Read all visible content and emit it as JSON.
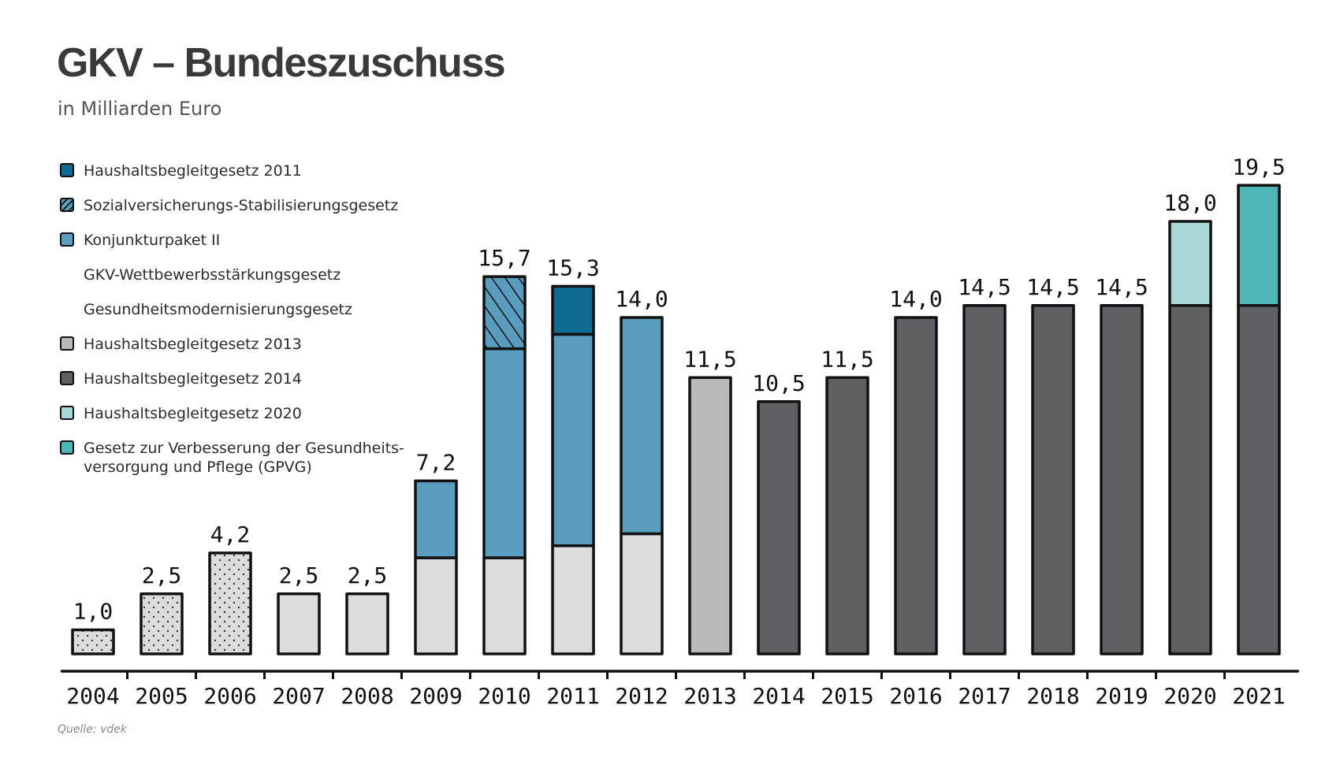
{
  "title": "GKV – Bundeszuschuss",
  "subtitle": "in Milliarden Euro",
  "source": "Quelle: vdek",
  "legend": [
    {
      "label": "Haushaltsbegleitgesetz 2011",
      "color": "#0f6b93",
      "pattern": "solid"
    },
    {
      "label": "Sozialversicherungs-Stabilisierungsgesetz",
      "color": "#5a9cbd",
      "pattern": "hatch"
    },
    {
      "label": "Konjunkturpaket II",
      "color": "#5a9cbd",
      "pattern": "solid"
    },
    {
      "label": "GKV-Wettbewerbsstärkungsgesetz",
      "color": "",
      "pattern": "none"
    },
    {
      "label": "Gesundheitsmodernisierungsgesetz",
      "color": "",
      "pattern": "none"
    },
    {
      "label": "Haushaltsbegleitgesetz 2013",
      "color": "#b8b9b9",
      "pattern": "solid"
    },
    {
      "label": "Haushaltsbegleitgesetz 2014",
      "color": "#5f6064",
      "pattern": "solid"
    },
    {
      "label": "Haushaltsbegleitgesetz 2020",
      "color": "#a8d7d7",
      "pattern": "solid"
    },
    {
      "label": "Gesetz zur Verbesserung der Gesundheits-versorgung und Pflege (GPVG)",
      "color": "#4fb4b5",
      "pattern": "solid"
    }
  ],
  "chart_data": {
    "type": "bar",
    "stacked": true,
    "categories": [
      "2004",
      "2005",
      "2006",
      "2007",
      "2008",
      "2009",
      "2010",
      "2011",
      "2012",
      "2013",
      "2014",
      "2015",
      "2016",
      "2017",
      "2018",
      "2019",
      "2020",
      "2021"
    ],
    "totals": [
      "1,0",
      "2,5",
      "4,2",
      "2,5",
      "2,5",
      "7,2",
      "15,7",
      "15,3",
      "14,0",
      "11,5",
      "10,5",
      "11,5",
      "14,0",
      "14,5",
      "14,5",
      "14,5",
      "18,0",
      "19,5"
    ],
    "ylim": [
      0,
      20
    ],
    "grid": false,
    "legend_position": "top-left",
    "series": [
      {
        "name": "Gesundheitsmodernisierungsgesetz",
        "color": "#dcdcdc",
        "pattern": "dots",
        "values": [
          1.0,
          2.5,
          4.2,
          0,
          0,
          0,
          0,
          0,
          0,
          0,
          0,
          0,
          0,
          0,
          0,
          0,
          0,
          0
        ]
      },
      {
        "name": "GKV-Wettbewerbsstärkungsgesetz",
        "color": "#dcdcdc",
        "pattern": "solid",
        "values": [
          0,
          0,
          0,
          2.5,
          2.5,
          4.0,
          4.0,
          4.5,
          5.0,
          0,
          0,
          0,
          0,
          0,
          0,
          0,
          0,
          0
        ]
      },
      {
        "name": "Haushaltsbegleitgesetz 2013",
        "color": "#b8b9b9",
        "pattern": "solid",
        "values": [
          0,
          0,
          0,
          0,
          0,
          0,
          0,
          0,
          0,
          11.5,
          0,
          0,
          0,
          0,
          0,
          0,
          0,
          0
        ]
      },
      {
        "name": "Haushaltsbegleitgesetz 2014",
        "color": "#5f6064",
        "pattern": "solid",
        "values": [
          0,
          0,
          0,
          0,
          0,
          0,
          0,
          0,
          0,
          0,
          10.5,
          11.5,
          14.0,
          14.5,
          14.5,
          14.5,
          14.5,
          14.5
        ]
      },
      {
        "name": "Konjunkturpaket II",
        "color": "#5a9cbd",
        "pattern": "solid",
        "values": [
          0,
          0,
          0,
          0,
          0,
          3.2,
          8.7,
          8.8,
          9.0,
          0,
          0,
          0,
          0,
          0,
          0,
          0,
          0,
          0
        ]
      },
      {
        "name": "Sozialversicherungs-Stabilisierungsgesetz",
        "color": "#5a9cbd",
        "pattern": "hatch",
        "values": [
          0,
          0,
          0,
          0,
          0,
          0,
          3.0,
          0,
          0,
          0,
          0,
          0,
          0,
          0,
          0,
          0,
          0,
          0
        ]
      },
      {
        "name": "Haushaltsbegleitgesetz 2011",
        "color": "#0f6b93",
        "pattern": "solid",
        "values": [
          0,
          0,
          0,
          0,
          0,
          0,
          0,
          2.0,
          0,
          0,
          0,
          0,
          0,
          0,
          0,
          0,
          0,
          0
        ]
      },
      {
        "name": "Haushaltsbegleitgesetz 2020",
        "color": "#a8d7d7",
        "pattern": "solid",
        "values": [
          0,
          0,
          0,
          0,
          0,
          0,
          0,
          0,
          0,
          0,
          0,
          0,
          0,
          0,
          0,
          0,
          3.5,
          0
        ]
      },
      {
        "name": "Gesetz zur Verbesserung der Gesundheits-versorgung und Pflege (GPVG)",
        "color": "#4fb4b5",
        "pattern": "solid",
        "values": [
          0,
          0,
          0,
          0,
          0,
          0,
          0,
          0,
          0,
          0,
          0,
          0,
          0,
          0,
          0,
          0,
          0,
          5.0
        ]
      }
    ]
  }
}
